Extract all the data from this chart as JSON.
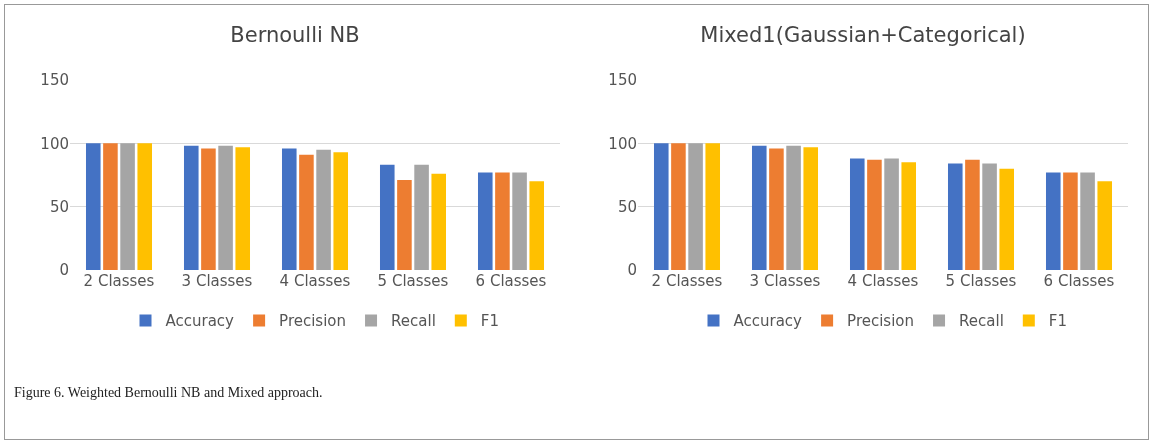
{
  "chart_data": [
    {
      "type": "bar",
      "title": "Bernoulli NB",
      "categories": [
        "2 Classes",
        "3 Classes",
        "4 Classes",
        "5 Classes",
        "6 Classes"
      ],
      "series": [
        {
          "name": "Accuracy",
          "color": "#4472c4",
          "values": [
            100,
            98,
            96,
            83,
            77
          ]
        },
        {
          "name": "Precision",
          "color": "#ed7d31",
          "values": [
            100,
            96,
            91,
            71,
            77
          ]
        },
        {
          "name": "Recall",
          "color": "#a5a5a5",
          "values": [
            100,
            98,
            95,
            83,
            77
          ]
        },
        {
          "name": "F1",
          "color": "#ffc000",
          "values": [
            100,
            97,
            93,
            76,
            70
          ]
        }
      ],
      "ylim": [
        0,
        150
      ],
      "yticks": [
        0,
        50,
        100,
        150
      ],
      "grid": "y",
      "legend": "bottom"
    },
    {
      "type": "bar",
      "title": "Mixed1(Gaussian+Categorical)",
      "categories": [
        "2 Classes",
        "3 Classes",
        "4 Classes",
        "5 Classes",
        "6 Classes"
      ],
      "series": [
        {
          "name": "Accuracy",
          "color": "#4472c4",
          "values": [
            100,
            98,
            88,
            84,
            77
          ]
        },
        {
          "name": "Precision",
          "color": "#ed7d31",
          "values": [
            100,
            96,
            87,
            87,
            77
          ]
        },
        {
          "name": "Recall",
          "color": "#a5a5a5",
          "values": [
            100,
            98,
            88,
            84,
            77
          ]
        },
        {
          "name": "F1",
          "color": "#ffc000",
          "values": [
            100,
            97,
            85,
            80,
            70
          ]
        }
      ],
      "ylim": [
        0,
        150
      ],
      "yticks": [
        0,
        50,
        100,
        150
      ],
      "grid": "y",
      "legend": "bottom",
      "annotations": [
        "Figure 6. Weighted Bernoulli NB and Mixed approach."
      ]
    }
  ]
}
